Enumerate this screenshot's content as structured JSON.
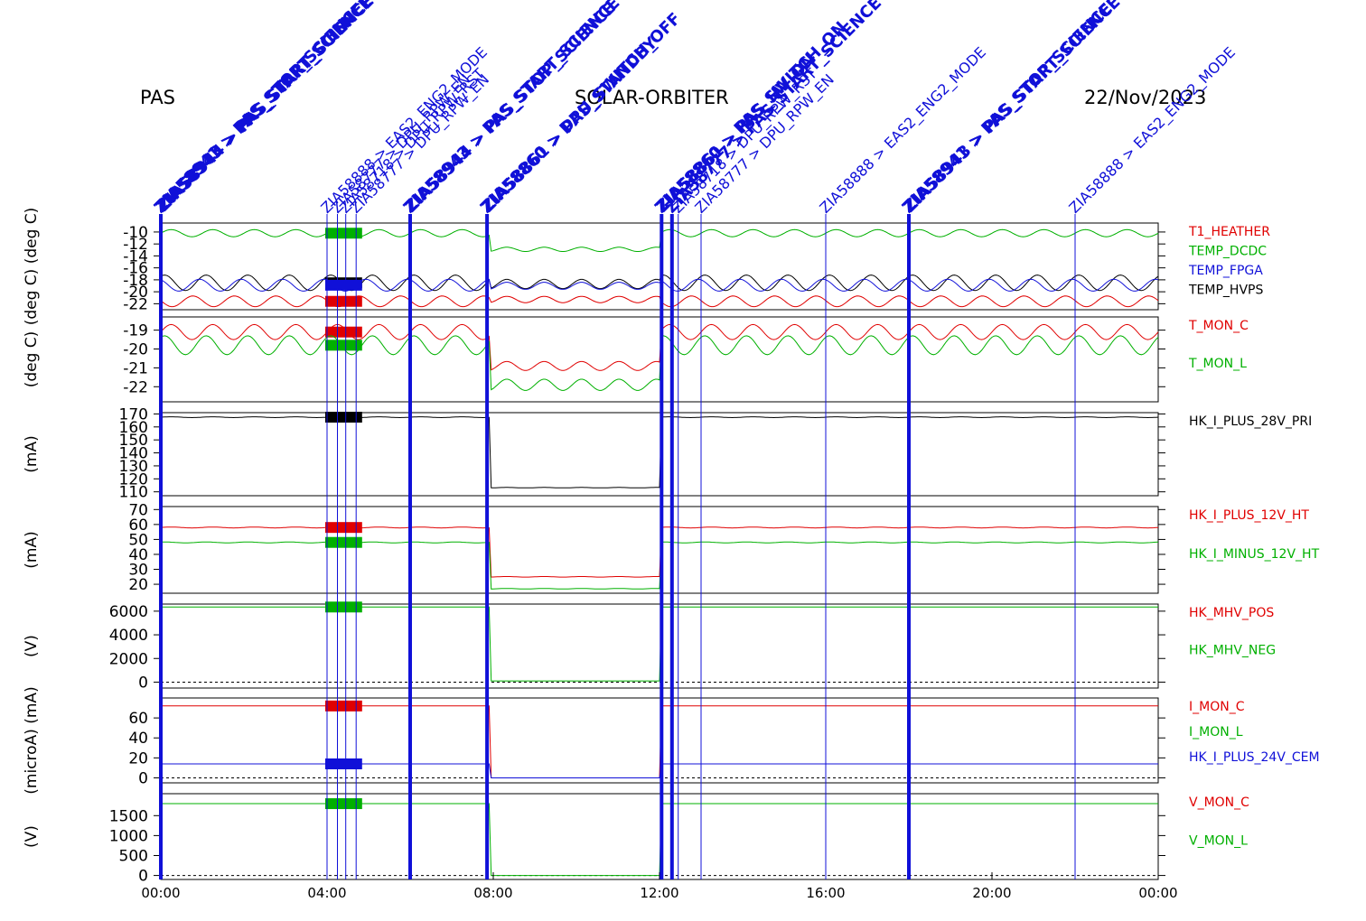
{
  "header": {
    "instrument": "PAS",
    "mission": "SOLAR-ORBITER",
    "date": "22/Nov/2023"
  },
  "colors": {
    "red": "#e00000",
    "green": "#00b000",
    "blue": "#1010d8",
    "black": "#000000"
  },
  "chart_data": {
    "type": "line",
    "x_ticks": [
      "00:00",
      "04:00",
      "08:00",
      "12:00",
      "16:00",
      "20:00",
      "00:00"
    ],
    "xlim_hours": [
      0,
      24
    ],
    "events": [
      {
        "t": 0.0,
        "bold": true,
        "labels": [
          "ZIA58941 > PAS_STOP_SCIENCE",
          "ZIA58943 > PAS_START_SCIENCE",
          "ZIA58944 > PAS_START_SCIENCE"
        ]
      },
      {
        "t": 4.0,
        "bold": false,
        "labels": [
          "ZIA58888 > EAS2_ENG2_MODE"
        ]
      },
      {
        "t": 4.25,
        "bold": false,
        "labels": [
          "ZIA58777 > DPU_RPW_EN"
        ]
      },
      {
        "t": 4.45,
        "bold": false,
        "labels": [
          "ZIA58718 > DPU_RPW_RST"
        ]
      },
      {
        "t": 4.7,
        "bold": false,
        "labels": [
          "ZIA58777 > DPU_RPW_EN"
        ]
      },
      {
        "t": 6.0,
        "bold": true,
        "labels": [
          "ZIA58943 > PAS_START_SCIENCE",
          "ZIA58944 > PAS_STOP_SCIENCE"
        ]
      },
      {
        "t": 7.85,
        "bold": true,
        "labels": [
          "ZIA58860 > DPU_SWITCH_OFF",
          "ZIA58861 > PAS_STANDBY"
        ]
      },
      {
        "t": 12.05,
        "bold": true,
        "labels": [
          "ZIA58860 > PAS_SWITCH_ON",
          "ZIA58861 > PAS_HV_ON"
        ]
      },
      {
        "t": 12.3,
        "bold": true,
        "labels": [
          "ZIA58777 > PAS_START_SCIENCE"
        ]
      },
      {
        "t": 12.45,
        "bold": false,
        "labels": [
          "ZIA58718 > DPU_RPW_RST"
        ]
      },
      {
        "t": 13.0,
        "bold": false,
        "labels": [
          "ZIA58777 > DPU_RPW_EN"
        ]
      },
      {
        "t": 16.0,
        "bold": false,
        "labels": [
          "ZIA58888 > EAS2_ENG2_MODE"
        ]
      },
      {
        "t": 18.0,
        "bold": true,
        "labels": [
          "ZIA58941 > PAS_STOP_SCIENCE",
          "ZIA58943 > PAS_START_SCIENCE"
        ]
      },
      {
        "t": 22.0,
        "bold": false,
        "labels": [
          "ZIA58888 > EAS2_ENG2_MODE"
        ]
      }
    ],
    "panels": [
      {
        "ylabel": "(deg C)  (deg C)",
        "ylim": [
          -23,
          -8.5
        ],
        "yticks": [
          -10,
          -12,
          -14,
          -16,
          -18,
          -20,
          -22
        ],
        "legend": [
          {
            "name": "T1_HEATHER",
            "color": "red"
          },
          {
            "name": "TEMP_DCDC",
            "color": "green"
          },
          {
            "name": "TEMP_FPGA",
            "color": "blue"
          },
          {
            "name": "TEMP_HVPS",
            "color": "black"
          }
        ],
        "series": [
          {
            "color": "green",
            "base": -10.2,
            "amp": 0.6,
            "gap_base": -12.9
          },
          {
            "color": "black",
            "base": -18.5,
            "amp": 1.3,
            "gap_base": -18.7
          },
          {
            "color": "blue",
            "base": -18.9,
            "amp": 1.0,
            "gap_base": -19.0
          },
          {
            "color": "red",
            "base": -21.6,
            "amp": 0.9,
            "gap_base": -21.3
          }
        ]
      },
      {
        "ylabel": "(deg C)",
        "ylim": [
          -22.8,
          -18.3
        ],
        "yticks": [
          -19,
          -20,
          -21,
          -22
        ],
        "legend": [
          {
            "name": "T_MON_C",
            "color": "red"
          },
          {
            "name": "T_MON_L",
            "color": "green"
          }
        ],
        "series": [
          {
            "color": "red",
            "base": -19.1,
            "amp": 0.4,
            "gap_base": -20.9
          },
          {
            "color": "green",
            "base": -19.8,
            "amp": 0.5,
            "gap_base": -21.9
          }
        ]
      },
      {
        "ylabel": "(mA)",
        "ylim": [
          107,
          171
        ],
        "yticks": [
          170,
          160,
          150,
          140,
          130,
          120,
          110
        ],
        "legend": [
          {
            "name": "HK_I_PLUS_28V_PRI",
            "color": "black"
          }
        ],
        "series": [
          {
            "color": "black",
            "base": 167.5,
            "amp": 0.3,
            "gap_base": 113.2
          }
        ]
      },
      {
        "ylabel": "(mA)",
        "ylim": [
          14,
          72
        ],
        "yticks": [
          70,
          60,
          50,
          40,
          30,
          20
        ],
        "legend": [
          {
            "name": "HK_I_PLUS_12V_HT",
            "color": "red"
          },
          {
            "name": "HK_I_MINUS_12V_HT",
            "color": "green"
          }
        ],
        "series": [
          {
            "color": "red",
            "base": 58,
            "amp": 0.3,
            "gap_base": 25
          },
          {
            "color": "green",
            "base": 48,
            "amp": 0.3,
            "gap_base": 17
          }
        ]
      },
      {
        "ylabel": "(V)",
        "ylim": [
          -500,
          6600
        ],
        "yticks": [
          6000,
          4000,
          2000,
          0
        ],
        "legend": [
          {
            "name": "HK_MHV_POS",
            "color": "red"
          },
          {
            "name": "HK_MHV_NEG",
            "color": "green"
          }
        ],
        "series": [
          {
            "color": "green",
            "base": 6350,
            "amp": 0,
            "gap_base": 100
          }
        ]
      },
      {
        "ylabel": "(microA)  (mA)",
        "ylim": [
          -5,
          80
        ],
        "yticks": [
          60,
          40,
          20,
          0
        ],
        "legend": [
          {
            "name": "I_MON_C",
            "color": "red"
          },
          {
            "name": "I_MON_L",
            "color": "green"
          },
          {
            "name": "HK_I_PLUS_24V_CEM",
            "color": "blue"
          }
        ],
        "series": [
          {
            "color": "red",
            "base": 72,
            "amp": 0,
            "gap_base": 0
          },
          {
            "color": "blue",
            "base": 14,
            "amp": 0,
            "gap_base": 0
          }
        ]
      },
      {
        "ylabel": "(V)",
        "ylim": [
          -100,
          2050
        ],
        "yticks": [
          1500,
          1000,
          500,
          0
        ],
        "legend": [
          {
            "name": "V_MON_C",
            "color": "red"
          },
          {
            "name": "V_MON_L",
            "color": "green"
          }
        ],
        "series": [
          {
            "color": "green",
            "base": 1800,
            "amp": 0,
            "gap_base": 0
          }
        ]
      }
    ]
  }
}
